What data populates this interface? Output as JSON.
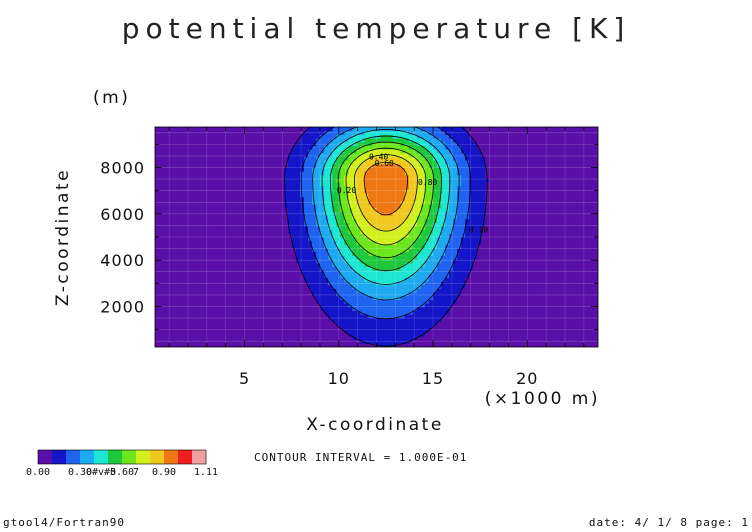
{
  "chart_data": {
    "type": "heatmap",
    "title": "potential temperature [K]",
    "xlabel": "X-coordinate",
    "xunit": "(×1000 m)",
    "ylabel": "Z-coordinate",
    "yunit": "(m)",
    "xlim": [
      0.25,
      23.75
    ],
    "ylim": [
      250,
      9750
    ],
    "x_ticks": [
      "5",
      "10",
      "15",
      "20"
    ],
    "y_ticks": [
      "2000",
      "4000",
      "6000",
      "8000"
    ],
    "x_tick_values": [
      5,
      10,
      15,
      20
    ],
    "y_tick_values": [
      2000,
      4000,
      6000,
      8000
    ],
    "field": {
      "center_x": 12.5,
      "center_z": 7500,
      "peak": 1.0,
      "radius_x": 3.8,
      "radius_z_up": 2400,
      "radius_z_down": 5100
    },
    "contour_labels": [
      "0.40",
      "0.60",
      "0.80",
      "0.20",
      "0.10"
    ],
    "colorbar": {
      "levels": [
        0.0,
        0.1,
        0.2,
        0.3,
        0.4,
        0.5,
        0.6,
        0.7,
        0.8,
        0.9,
        1.0,
        1.11
      ],
      "colors": [
        "#5b0fa8",
        "#1414c8",
        "#1e64f0",
        "#1eaaf0",
        "#1ee6d2",
        "#1ec83c",
        "#6ee61e",
        "#d2f01e",
        "#f0c81e",
        "#f07814",
        "#f01e1e",
        "#f0a0a0"
      ],
      "tick_labels": [
        "0.00",
        "0.30",
        "0.60",
        "0.90",
        "1.11"
      ],
      "overlap_labels": [
        "0#v#5",
        "7"
      ]
    },
    "contour_interval": "CONTOUR INTERVAL = 1.000E-01"
  },
  "footer": {
    "left": "gtool4/Fortran90",
    "right": "date: 4/ 1/ 8 page: 1"
  }
}
